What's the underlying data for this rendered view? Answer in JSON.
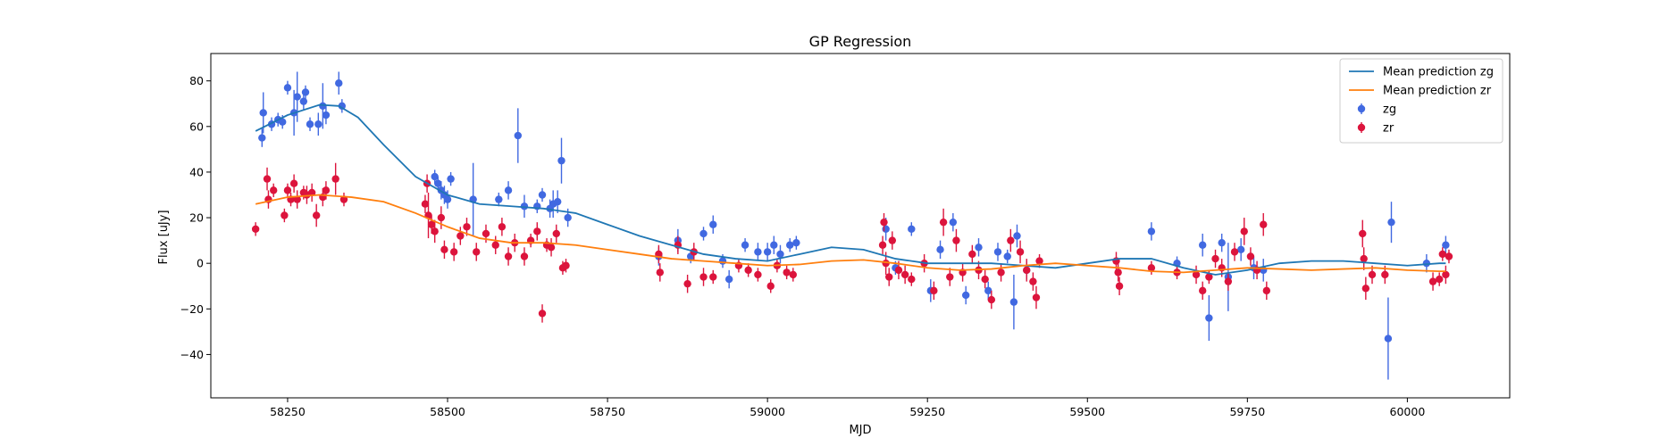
{
  "chart_data": {
    "type": "scatter",
    "title": "GP Regression",
    "xlabel": "MJD",
    "ylabel": "Flux [uJy]",
    "xlim": [
      58130,
      60160
    ],
    "ylim": [
      -59,
      92
    ],
    "xticks": [
      58250,
      58500,
      58750,
      59000,
      59250,
      59500,
      59750,
      60000
    ],
    "yticks": [
      -40,
      -20,
      0,
      20,
      40,
      60,
      80
    ],
    "grid": false,
    "legend_position": "top-right",
    "lines": [
      {
        "name": "Mean prediction zg",
        "color": "#1f77b4",
        "x": [
          58200,
          58250,
          58300,
          58330,
          58360,
          58400,
          58450,
          58500,
          58550,
          58600,
          58650,
          58700,
          58750,
          58800,
          58850,
          58900,
          58950,
          59000,
          59050,
          59100,
          59150,
          59200,
          59250,
          59300,
          59350,
          59400,
          59450,
          59500,
          59550,
          59600,
          59650,
          59700,
          59750,
          59800,
          59850,
          59900,
          59950,
          60000,
          60050,
          60060
        ],
        "y": [
          58,
          65,
          69.5,
          69,
          64,
          52,
          38,
          30,
          26,
          25,
          24,
          22,
          17,
          12,
          8,
          4,
          2,
          1,
          4,
          7,
          6,
          2,
          0,
          0,
          0,
          -1,
          -2,
          0,
          2,
          2,
          -2,
          -5,
          -3,
          0,
          1,
          1,
          0,
          -1,
          0,
          0
        ]
      },
      {
        "name": "Mean prediction zr",
        "color": "#ff7f0e",
        "x": [
          58200,
          58250,
          58300,
          58350,
          58400,
          58450,
          58500,
          58550,
          58600,
          58650,
          58700,
          58750,
          58800,
          58850,
          58900,
          58950,
          59000,
          59050,
          59100,
          59150,
          59200,
          59250,
          59300,
          59350,
          59400,
          59450,
          59500,
          59550,
          59600,
          59650,
          59700,
          59750,
          59800,
          59850,
          59900,
          59950,
          60000,
          60050,
          60060
        ],
        "y": [
          26,
          29,
          30,
          29,
          27,
          22,
          16,
          11,
          9,
          9,
          8,
          6,
          4,
          2,
          1,
          0,
          -1,
          -0.5,
          1,
          1.5,
          0,
          -2,
          -3,
          -2.5,
          -1,
          0,
          -1,
          -2,
          -3.5,
          -4,
          -3,
          -2,
          -2.5,
          -3,
          -2.5,
          -2,
          -3,
          -3.5,
          -3.5
        ]
      }
    ],
    "series": [
      {
        "name": "zg",
        "color": "#4169e1",
        "points": [
          [
            58210,
            55,
            4
          ],
          [
            58212,
            66,
            9
          ],
          [
            58225,
            61,
            3
          ],
          [
            58235,
            63,
            3
          ],
          [
            58242,
            62,
            3
          ],
          [
            58250,
            77,
            3
          ],
          [
            58260,
            66,
            10
          ],
          [
            58265,
            73,
            11
          ],
          [
            58275,
            71,
            4
          ],
          [
            58278,
            75,
            3
          ],
          [
            58285,
            61,
            3
          ],
          [
            58298,
            61,
            5
          ],
          [
            58305,
            69,
            10
          ],
          [
            58310,
            65,
            4
          ],
          [
            58330,
            79,
            5
          ],
          [
            58335,
            69,
            3
          ],
          [
            58480,
            38,
            3
          ],
          [
            58485,
            35,
            3
          ],
          [
            58490,
            32,
            4
          ],
          [
            58495,
            30,
            4
          ],
          [
            58500,
            28,
            4
          ],
          [
            58505,
            37,
            3
          ],
          [
            58540,
            28,
            16
          ],
          [
            58580,
            28,
            3
          ],
          [
            58595,
            32,
            4
          ],
          [
            58610,
            56,
            12
          ],
          [
            58620,
            25,
            5
          ],
          [
            58640,
            25,
            3
          ],
          [
            58648,
            30,
            3
          ],
          [
            58660,
            24,
            4
          ],
          [
            58665,
            26,
            6
          ],
          [
            58672,
            27,
            5
          ],
          [
            58678,
            45,
            10
          ],
          [
            58688,
            20,
            4
          ],
          [
            58830,
            3,
            4
          ],
          [
            58860,
            10,
            5
          ],
          [
            58880,
            3,
            3
          ],
          [
            58900,
            13,
            3
          ],
          [
            58915,
            17,
            4
          ],
          [
            58930,
            1,
            3
          ],
          [
            58940,
            -7,
            4
          ],
          [
            58965,
            8,
            3
          ],
          [
            58985,
            5,
            4
          ],
          [
            59000,
            5,
            4
          ],
          [
            59010,
            8,
            4
          ],
          [
            59020,
            4,
            4
          ],
          [
            59035,
            8,
            3
          ],
          [
            59045,
            9,
            3
          ],
          [
            59185,
            15,
            5
          ],
          [
            59200,
            -2,
            3
          ],
          [
            59225,
            15,
            3
          ],
          [
            59255,
            -12,
            5
          ],
          [
            59270,
            6,
            4
          ],
          [
            59290,
            18,
            4
          ],
          [
            59310,
            -14,
            4
          ],
          [
            59330,
            7,
            4
          ],
          [
            59345,
            -12,
            4
          ],
          [
            59360,
            5,
            4
          ],
          [
            59375,
            3,
            3
          ],
          [
            59385,
            -17,
            12
          ],
          [
            59390,
            12,
            5
          ],
          [
            59405,
            -3,
            4
          ],
          [
            59600,
            14,
            4
          ],
          [
            59640,
            0,
            3
          ],
          [
            59680,
            8,
            5
          ],
          [
            59690,
            -24,
            10
          ],
          [
            59710,
            9,
            4
          ],
          [
            59720,
            -6,
            15
          ],
          [
            59740,
            6,
            5
          ],
          [
            59760,
            -2,
            5
          ],
          [
            59775,
            -3,
            5
          ],
          [
            59970,
            -33,
            18
          ],
          [
            59975,
            18,
            9
          ],
          [
            60030,
            0,
            4
          ],
          [
            60060,
            8,
            4
          ]
        ]
      },
      {
        "name": "zr",
        "color": "#dc143c",
        "points": [
          [
            58200,
            15,
            3
          ],
          [
            58218,
            37,
            5
          ],
          [
            58220,
            28,
            4
          ],
          [
            58228,
            32,
            3
          ],
          [
            58245,
            21,
            3
          ],
          [
            58250,
            32,
            3
          ],
          [
            58255,
            28,
            3
          ],
          [
            58260,
            35,
            4
          ],
          [
            58265,
            28,
            4
          ],
          [
            58275,
            31,
            3
          ],
          [
            58280,
            30,
            4
          ],
          [
            58288,
            31,
            4
          ],
          [
            58295,
            21,
            5
          ],
          [
            58305,
            29,
            4
          ],
          [
            58310,
            32,
            4
          ],
          [
            58325,
            37,
            7
          ],
          [
            58338,
            28,
            3
          ],
          [
            58465,
            26,
            4
          ],
          [
            58468,
            35,
            4
          ],
          [
            58470,
            21,
            10
          ],
          [
            58475,
            17,
            4
          ],
          [
            58480,
            14,
            5
          ],
          [
            58490,
            20,
            5
          ],
          [
            58495,
            6,
            4
          ],
          [
            58510,
            5,
            4
          ],
          [
            58520,
            12,
            4
          ],
          [
            58530,
            16,
            4
          ],
          [
            58545,
            5,
            4
          ],
          [
            58560,
            13,
            4
          ],
          [
            58575,
            8,
            4
          ],
          [
            58585,
            16,
            4
          ],
          [
            58595,
            3,
            4
          ],
          [
            58605,
            9,
            4
          ],
          [
            58620,
            3,
            4
          ],
          [
            58630,
            10,
            3
          ],
          [
            58640,
            14,
            4
          ],
          [
            58648,
            -22,
            4
          ],
          [
            58655,
            8,
            3
          ],
          [
            58662,
            7,
            4
          ],
          [
            58670,
            13,
            4
          ],
          [
            58680,
            -2,
            3
          ],
          [
            58685,
            -1,
            3
          ],
          [
            58830,
            4,
            4
          ],
          [
            58832,
            -4,
            4
          ],
          [
            58860,
            8,
            4
          ],
          [
            58875,
            -9,
            4
          ],
          [
            58885,
            5,
            4
          ],
          [
            58900,
            -6,
            4
          ],
          [
            58915,
            -6,
            3
          ],
          [
            58955,
            -1,
            3
          ],
          [
            58970,
            -3,
            3
          ],
          [
            58985,
            -5,
            3
          ],
          [
            59005,
            -10,
            3
          ],
          [
            59015,
            -1,
            3
          ],
          [
            59030,
            -4,
            3
          ],
          [
            59040,
            -5,
            3
          ],
          [
            59180,
            8,
            4
          ],
          [
            59182,
            18,
            4
          ],
          [
            59185,
            0,
            5
          ],
          [
            59190,
            -6,
            4
          ],
          [
            59195,
            10,
            4
          ],
          [
            59205,
            -3,
            4
          ],
          [
            59215,
            -5,
            4
          ],
          [
            59225,
            -7,
            3
          ],
          [
            59245,
            0,
            4
          ],
          [
            59260,
            -12,
            4
          ],
          [
            59275,
            18,
            6
          ],
          [
            59285,
            -6,
            4
          ],
          [
            59295,
            10,
            5
          ],
          [
            59305,
            -4,
            4
          ],
          [
            59320,
            4,
            4
          ],
          [
            59330,
            -3,
            4
          ],
          [
            59340,
            -7,
            4
          ],
          [
            59350,
            -16,
            4
          ],
          [
            59365,
            -4,
            4
          ],
          [
            59380,
            10,
            5
          ],
          [
            59395,
            5,
            5
          ],
          [
            59405,
            -3,
            5
          ],
          [
            59415,
            -8,
            4
          ],
          [
            59420,
            -15,
            5
          ],
          [
            59425,
            1,
            3
          ],
          [
            59545,
            1,
            4
          ],
          [
            59548,
            -4,
            4
          ],
          [
            59550,
            -10,
            4
          ],
          [
            59600,
            -2,
            3
          ],
          [
            59640,
            -4,
            3
          ],
          [
            59670,
            -5,
            4
          ],
          [
            59680,
            -12,
            4
          ],
          [
            59690,
            -6,
            3
          ],
          [
            59700,
            2,
            4
          ],
          [
            59710,
            -2,
            4
          ],
          [
            59720,
            -8,
            4
          ],
          [
            59730,
            5,
            4
          ],
          [
            59745,
            14,
            6
          ],
          [
            59755,
            3,
            4
          ],
          [
            59765,
            -3,
            4
          ],
          [
            59775,
            17,
            5
          ],
          [
            59780,
            -12,
            4
          ],
          [
            59930,
            13,
            6
          ],
          [
            59932,
            2,
            5
          ],
          [
            59935,
            -11,
            5
          ],
          [
            59945,
            -5,
            4
          ],
          [
            59965,
            -5,
            4
          ],
          [
            60040,
            -8,
            4
          ],
          [
            60050,
            -7,
            3
          ],
          [
            60055,
            4,
            3
          ],
          [
            60060,
            -5,
            4
          ],
          [
            60065,
            3,
            3
          ]
        ]
      }
    ]
  }
}
